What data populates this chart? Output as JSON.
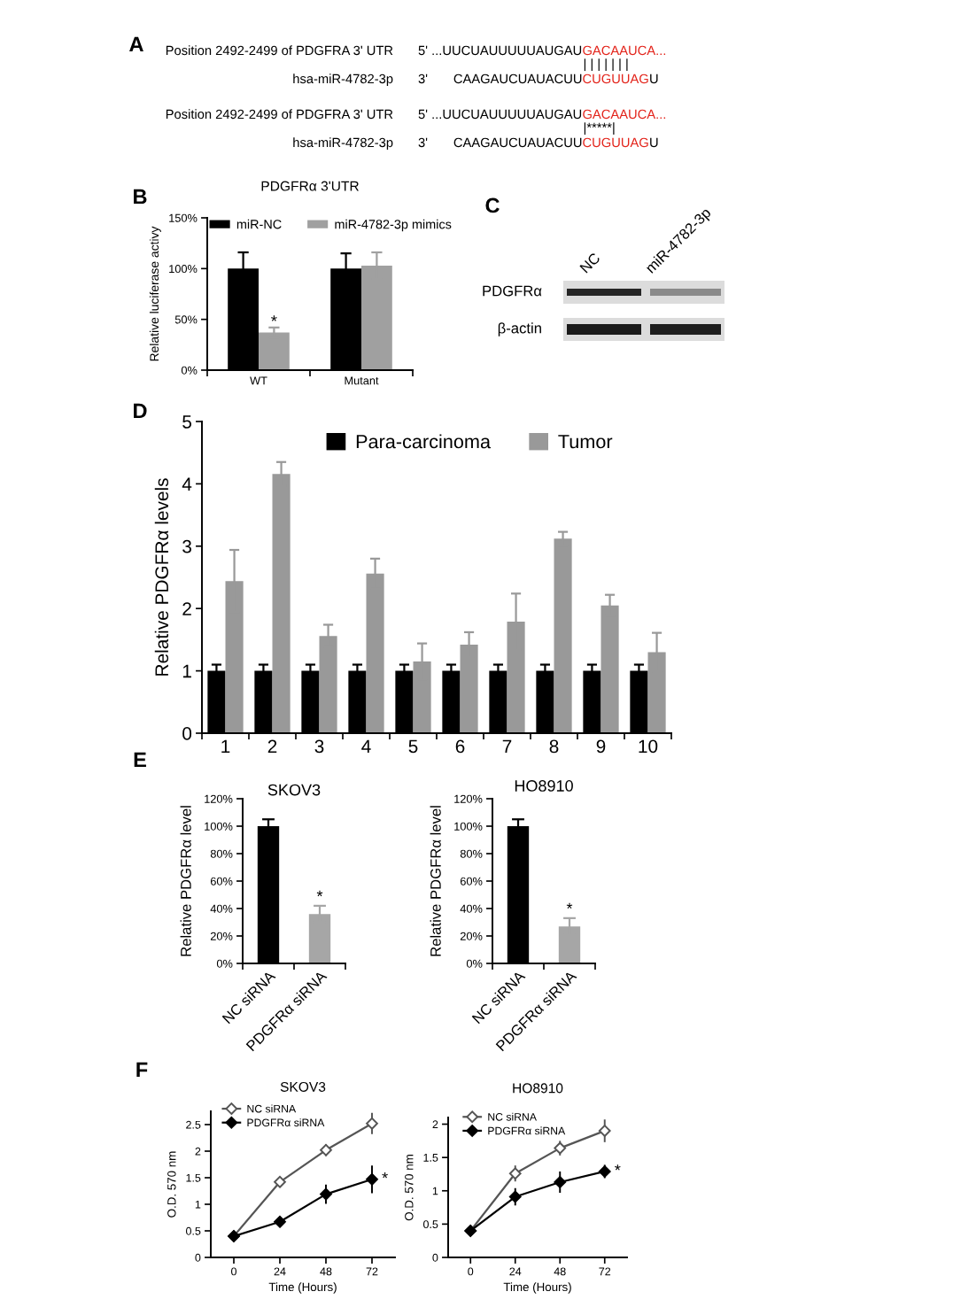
{
  "chart_data": [
    {
      "type": "other",
      "annotations": [
        "A",
        "Position 2492-2499 of PDGFRA 3' UTR",
        "5' ...UUCUAUUUUUAUGAU",
        "GACAAUCA...",
        "| | | | | | |",
        "hsa-miR-4782-3p",
        "3'",
        "CAAGAUCUAUACUU",
        "CUGUUAG",
        "U",
        "Position 2492-2499 of PDGFRA 3' UTR",
        "5' ...UUCUAUUUUUAUGAU",
        "GACAAUCA...",
        "|*****|",
        "hsa-miR-4782-3p",
        "3'",
        "CAAGAUCUAUACUU",
        "CUGUUAG",
        "U"
      ]
    },
    {
      "type": "bar",
      "title": "PDGFRα 3'UTR",
      "ylabel": "Relative luciferase activy",
      "categories": [
        "WT",
        "Mutant"
      ],
      "series": [
        {
          "name": "miR-NC",
          "color": "#000000",
          "values": [
            100,
            100
          ],
          "errors": [
            16,
            15
          ]
        },
        {
          "name": "miR-4782-3p mimics",
          "color": "#a0a0a0",
          "values": [
            37,
            103
          ],
          "errors": [
            5,
            13
          ]
        }
      ],
      "ylim": [
        0,
        150
      ],
      "yticks": [
        {
          "value": 0,
          "label": "0%"
        },
        {
          "value": 50,
          "label": "50%"
        },
        {
          "value": 100,
          "label": "100%"
        },
        {
          "value": 150,
          "label": "150%"
        }
      ],
      "legend": "top",
      "annotations": [
        "B",
        {
          "text": "*",
          "x": "WT",
          "y": 47
        }
      ]
    },
    {
      "type": "other",
      "annotations": [
        "C",
        "NC",
        "miR-4782-3p",
        "PDGFRα",
        "β-actin"
      ]
    },
    {
      "type": "bar",
      "ylabel": "Relative PDGFRα levels",
      "categories": [
        "1",
        "2",
        "3",
        "4",
        "5",
        "6",
        "7",
        "8",
        "9",
        "10"
      ],
      "series": [
        {
          "name": "Para-carcinoma",
          "color": "#000000",
          "values": [
            1,
            1,
            1,
            1,
            1,
            1,
            1,
            1,
            1,
            1
          ],
          "errors": [
            0.1,
            0.1,
            0.1,
            0.1,
            0.1,
            0.1,
            0.1,
            0.1,
            0.1,
            0.1
          ]
        },
        {
          "name": "Tumor",
          "color": "#999999",
          "values": [
            2.44,
            4.16,
            1.56,
            2.56,
            1.15,
            1.42,
            1.79,
            3.12,
            2.05,
            1.3
          ],
          "errors": [
            0.5,
            0.19,
            0.18,
            0.24,
            0.29,
            0.2,
            0.45,
            0.11,
            0.17,
            0.31
          ]
        }
      ],
      "ylim": [
        0,
        5
      ],
      "yticks": [
        0,
        1,
        2,
        3,
        4,
        5
      ],
      "legend": "top",
      "annotations": [
        "D"
      ]
    },
    {
      "type": "bar",
      "title": "SKOV3",
      "ylabel": "Relative PDGFRα level",
      "categories": [
        "NC siRNA",
        "PDGFRα siRNA"
      ],
      "values": [
        100,
        36
      ],
      "errors": [
        5,
        6
      ],
      "colors": [
        "#000000",
        "#a6a6a6"
      ],
      "ylim": [
        0,
        120
      ],
      "yticks": [
        {
          "value": 0,
          "label": "0%"
        },
        {
          "value": 20,
          "label": "20%"
        },
        {
          "value": 40,
          "label": "40%"
        },
        {
          "value": 60,
          "label": "60%"
        },
        {
          "value": 80,
          "label": "80%"
        },
        {
          "value": 100,
          "label": "100%"
        },
        {
          "value": 120,
          "label": "120%"
        }
      ],
      "annotations": [
        "E",
        {
          "text": "*",
          "x": "PDGFRα siRNA",
          "y": 48
        }
      ]
    },
    {
      "type": "bar",
      "title": "HO8910",
      "ylabel": "Relative PDGFRα level",
      "categories": [
        "NC siRNA",
        "PDGFRα siRNA"
      ],
      "values": [
        100,
        27
      ],
      "errors": [
        5,
        6
      ],
      "colors": [
        "#000000",
        "#a6a6a6"
      ],
      "ylim": [
        0,
        120
      ],
      "yticks": [
        {
          "value": 0,
          "label": "0%"
        },
        {
          "value": 20,
          "label": "20%"
        },
        {
          "value": 40,
          "label": "40%"
        },
        {
          "value": 60,
          "label": "60%"
        },
        {
          "value": 80,
          "label": "80%"
        },
        {
          "value": 100,
          "label": "100%"
        },
        {
          "value": 120,
          "label": "120%"
        }
      ],
      "annotations": [
        {
          "text": "*",
          "x": "PDGFRα siRNA",
          "y": 39
        }
      ]
    },
    {
      "type": "line",
      "title": "SKOV3",
      "xlabel": "Time (Hours)",
      "ylabel": "O.D. 570 nm",
      "x": [
        0,
        24,
        48,
        72
      ],
      "series": [
        {
          "name": "NC siRNA",
          "color": "#555555",
          "values": [
            0.4,
            1.42,
            2.02,
            2.52
          ],
          "errors": [
            0.03,
            0.04,
            0.11,
            0.2
          ]
        },
        {
          "name": "PDGFRα siRNA",
          "color": "#000000",
          "values": [
            0.4,
            0.67,
            1.19,
            1.47
          ],
          "errors": [
            0.03,
            0.05,
            0.18,
            0.26
          ]
        }
      ],
      "xlim": [
        -12,
        84
      ],
      "xticks": [
        0,
        24,
        48,
        72
      ],
      "ylim": [
        0,
        2.75
      ],
      "yticks": [
        0,
        0.5,
        1,
        1.5,
        2,
        2.5
      ],
      "marker": "diamond",
      "legend": "top left",
      "annotations": [
        "F",
        {
          "text": "*",
          "x": 72,
          "y": 1.47
        }
      ]
    },
    {
      "type": "line",
      "title": "HO8910",
      "xlabel": "Time (Hours)",
      "ylabel": "O.D. 570 nm",
      "x": [
        0,
        24,
        48,
        72
      ],
      "series": [
        {
          "name": "NC siRNA",
          "color": "#555555",
          "values": [
            0.4,
            1.26,
            1.64,
            1.9
          ],
          "errors": [
            0.03,
            0.12,
            0.11,
            0.17
          ]
        },
        {
          "name": "PDGFRα siRNA",
          "color": "#000000",
          "values": [
            0.4,
            0.91,
            1.13,
            1.29
          ],
          "errors": [
            0.03,
            0.13,
            0.16,
            0.1
          ]
        }
      ],
      "xlim": [
        -12,
        84
      ],
      "xticks": [
        0,
        24,
        48,
        72
      ],
      "ylim": [
        0,
        2.1
      ],
      "yticks": [
        0,
        0.5,
        1,
        1.5,
        2
      ],
      "marker": "diamond",
      "legend": "top left",
      "annotations": [
        {
          "text": "*",
          "x": 72,
          "y": 1.29
        }
      ]
    }
  ]
}
